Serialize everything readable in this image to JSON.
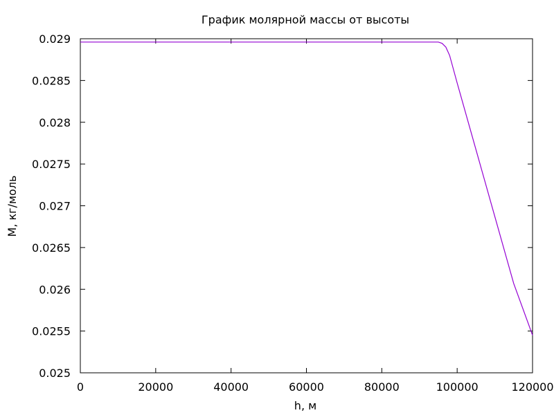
{
  "chart_data": {
    "type": "line",
    "title": "График молярной массы от высоты",
    "xlabel": "h, м",
    "ylabel": "M, кг/моль",
    "xlim": [
      0,
      120000
    ],
    "ylim": [
      0.025,
      0.029
    ],
    "xticks": [
      0,
      20000,
      40000,
      60000,
      80000,
      100000,
      120000
    ],
    "xtick_labels": [
      "0",
      "20000",
      "40000",
      "60000",
      "80000",
      "100000",
      "120000"
    ],
    "yticks": [
      0.025,
      0.0255,
      0.026,
      0.0265,
      0.027,
      0.0275,
      0.028,
      0.0285,
      0.029
    ],
    "ytick_labels": [
      "0.025",
      "0.0255",
      "0.026",
      "0.0265",
      "0.027",
      "0.0275",
      "0.028",
      "0.0285",
      "0.029"
    ],
    "grid": false,
    "series": [
      {
        "color": "#9400d3",
        "x": [
          0,
          10000,
          20000,
          30000,
          40000,
          50000,
          60000,
          70000,
          80000,
          90000,
          94000,
          95000,
          96000,
          97000,
          98000,
          100000,
          105000,
          110000,
          115000,
          120000
        ],
        "y": [
          0.02896,
          0.02896,
          0.02896,
          0.02896,
          0.02896,
          0.02896,
          0.02896,
          0.02896,
          0.02896,
          0.02896,
          0.02896,
          0.02896,
          0.028945,
          0.0289,
          0.0288,
          0.02847,
          0.02767,
          0.02687,
          0.02607,
          0.02545
        ]
      }
    ]
  }
}
